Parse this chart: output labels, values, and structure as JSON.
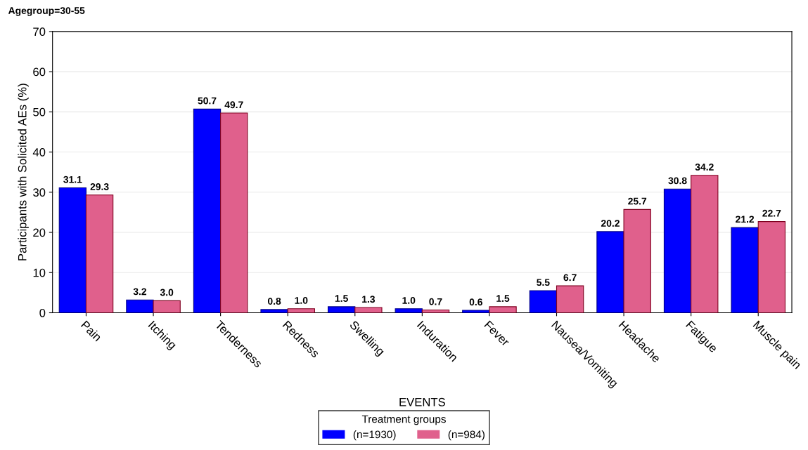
{
  "chart_data": {
    "type": "bar",
    "title": "Agegroup=30-55",
    "xlabel": "EVENTS",
    "ylabel": "Participants with Solicited AEs (%)",
    "categories": [
      "Pain",
      "Itching",
      "Tenderness",
      "Redness",
      "Swelling",
      "Induration",
      "Fever",
      "Nausea/Vomiting",
      "Headache",
      "Fatigue",
      "Muscle pain"
    ],
    "series": [
      {
        "name": "(n=1930)",
        "color": "#0000ff",
        "values": [
          31.1,
          3.2,
          50.7,
          0.8,
          1.5,
          1.0,
          0.6,
          5.5,
          20.2,
          30.8,
          21.2
        ],
        "value_labels": [
          "31.1",
          "3.2",
          "50.7",
          "0.8",
          "1.5",
          "1.0",
          "0.6",
          "5.5",
          "20.2",
          "30.8",
          "21.2"
        ]
      },
      {
        "name": "(n=984)",
        "color": "#e0608c",
        "values": [
          29.3,
          3.0,
          49.7,
          1.0,
          1.3,
          0.7,
          1.5,
          6.7,
          25.7,
          34.2,
          22.7
        ],
        "value_labels": [
          "29.3",
          "3.0",
          "49.7",
          "1.0",
          "1.3",
          "0.7",
          "1.5",
          "6.7",
          "25.7",
          "34.2",
          "22.7"
        ]
      }
    ],
    "ylim": [
      0,
      70
    ],
    "yticks": [
      0,
      10,
      20,
      30,
      40,
      50,
      60,
      70
    ],
    "grid": "y",
    "legend": "bottom",
    "legend_title": "Treatment groups"
  }
}
